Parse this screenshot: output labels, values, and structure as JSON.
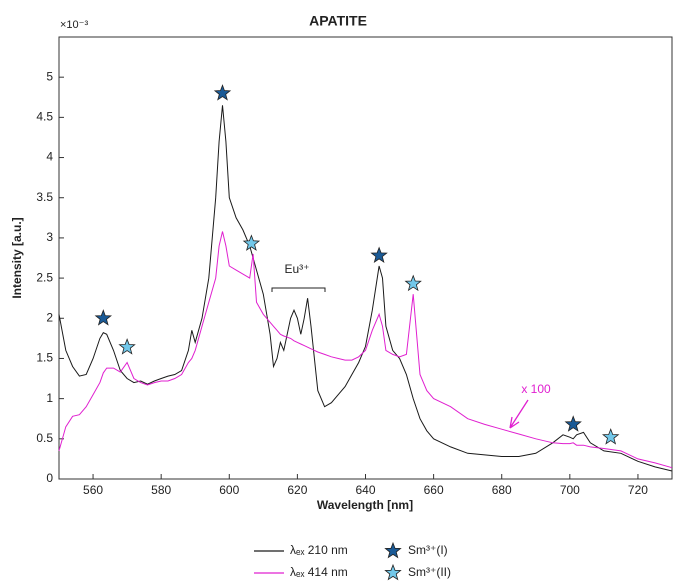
{
  "chart_data": {
    "type": "line",
    "title": "APATITE",
    "xlabel": "Wavelength [nm]",
    "ylabel": "Intensity [a.u.]",
    "y_exponent": "×10⁻³",
    "x": [
      550,
      552,
      554,
      556,
      558,
      560,
      562,
      563,
      564,
      566,
      568,
      570,
      572,
      574,
      576,
      578,
      580,
      582,
      584,
      586,
      588,
      589,
      590,
      592,
      594,
      596,
      597,
      598,
      599,
      600,
      602,
      604,
      606,
      607,
      608,
      610,
      612,
      613,
      614,
      615,
      616,
      618,
      619,
      620,
      621,
      622,
      623,
      624,
      626,
      628,
      630,
      632,
      634,
      636,
      638,
      640,
      642,
      644,
      645,
      646,
      648,
      650,
      652,
      654,
      656,
      658,
      660,
      665,
      670,
      675,
      680,
      685,
      690,
      695,
      698,
      700,
      701,
      702,
      704,
      706,
      710,
      715,
      720,
      725,
      730
    ],
    "series": [
      {
        "name": "λₑₓ 210 nm",
        "color": "#1a1a1a",
        "values": [
          2.05,
          1.6,
          1.4,
          1.28,
          1.3,
          1.5,
          1.75,
          1.82,
          1.8,
          1.6,
          1.35,
          1.25,
          1.2,
          1.22,
          1.18,
          1.22,
          1.25,
          1.28,
          1.3,
          1.35,
          1.6,
          1.85,
          1.7,
          2.0,
          2.5,
          3.5,
          4.2,
          4.65,
          4.2,
          3.5,
          3.25,
          3.1,
          2.9,
          2.75,
          2.6,
          2.3,
          1.8,
          1.4,
          1.5,
          1.7,
          1.6,
          2.0,
          2.1,
          2.0,
          1.8,
          2.0,
          2.25,
          1.9,
          1.1,
          0.9,
          0.95,
          1.05,
          1.15,
          1.3,
          1.45,
          1.65,
          2.1,
          2.65,
          2.5,
          1.9,
          1.6,
          1.5,
          1.3,
          1.0,
          0.75,
          0.6,
          0.5,
          0.4,
          0.32,
          0.3,
          0.28,
          0.28,
          0.32,
          0.45,
          0.55,
          0.52,
          0.5,
          0.55,
          0.58,
          0.45,
          0.35,
          0.32,
          0.22,
          0.15,
          0.1
        ]
      },
      {
        "name": "λₑₓ 414 nm",
        "color": "#e020d0",
        "values": [
          0.35,
          0.65,
          0.78,
          0.8,
          0.9,
          1.05,
          1.2,
          1.32,
          1.38,
          1.38,
          1.33,
          1.45,
          1.25,
          1.2,
          1.17,
          1.2,
          1.22,
          1.22,
          1.25,
          1.3,
          1.45,
          1.5,
          1.6,
          1.9,
          2.2,
          2.5,
          2.9,
          3.08,
          2.9,
          2.65,
          2.6,
          2.55,
          2.5,
          2.8,
          2.2,
          2.05,
          1.95,
          1.9,
          1.85,
          1.8,
          1.78,
          1.75,
          1.72,
          1.7,
          1.68,
          1.66,
          1.64,
          1.62,
          1.58,
          1.55,
          1.52,
          1.5,
          1.48,
          1.48,
          1.52,
          1.6,
          1.85,
          2.05,
          1.9,
          1.6,
          1.55,
          1.52,
          1.55,
          2.3,
          1.3,
          1.1,
          1.0,
          0.9,
          0.75,
          0.68,
          0.62,
          0.56,
          0.5,
          0.45,
          0.44,
          0.44,
          0.45,
          0.42,
          0.42,
          0.4,
          0.38,
          0.35,
          0.25,
          0.2,
          0.14
        ]
      }
    ],
    "markers": [
      {
        "name": "Sm³⁺(I)",
        "color": "#1a5a96",
        "x": [
          563,
          598,
          644,
          701
        ],
        "y": [
          2.0,
          4.8,
          2.78,
          0.68
        ]
      },
      {
        "name": "Sm³⁺(II)",
        "color": "#72c8ea",
        "x": [
          570,
          606.5,
          654,
          712
        ],
        "y": [
          1.64,
          2.93,
          2.43,
          0.52
        ]
      }
    ],
    "annotations": [
      {
        "text": "Eu³⁺"
      },
      {
        "text": "x 100"
      }
    ],
    "xlim": [
      550,
      730
    ],
    "xticks": [
      560,
      580,
      600,
      620,
      640,
      660,
      680,
      700,
      720
    ],
    "ylim": [
      0,
      5.5
    ],
    "yticks": [
      0,
      0.5,
      1,
      1.5,
      2,
      2.5,
      3,
      3.5,
      4,
      4.5,
      5
    ]
  }
}
